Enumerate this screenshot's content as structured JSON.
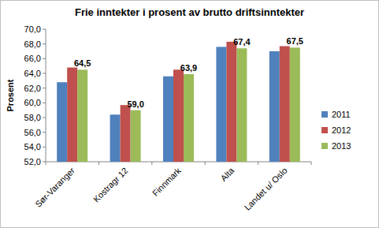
{
  "chart_data": {
    "type": "bar",
    "title": "Frie inntekter i prosent av brutto driftsinntekter",
    "y_label": "Prosent",
    "categories": [
      "Sør-Varanger",
      "Kostragr 12",
      "Finnmark",
      "Alta",
      "Landet u/ Oslo"
    ],
    "series": [
      {
        "name": "2011",
        "color": "#4f81bd",
        "values": [
          62.8,
          58.4,
          63.6,
          67.6,
          67.0
        ]
      },
      {
        "name": "2012",
        "color": "#c0504d",
        "values": [
          64.8,
          59.7,
          64.5,
          68.3,
          67.7
        ]
      },
      {
        "name": "2013",
        "color": "#9bbb59",
        "values": [
          64.5,
          59.0,
          63.9,
          67.4,
          67.5
        ],
        "data_labels": true,
        "value_labels": [
          "64,5",
          "59,0",
          "63,9",
          "67,4",
          "67,5"
        ]
      }
    ],
    "ylim": [
      52,
      70
    ],
    "yticks": [
      {
        "value": 52,
        "label": "52,0"
      },
      {
        "value": 54,
        "label": "54,0"
      },
      {
        "value": 56,
        "label": "56,0"
      },
      {
        "value": 58,
        "label": "58,0"
      },
      {
        "value": 60,
        "label": "60,0"
      },
      {
        "value": 62,
        "label": "62,0"
      },
      {
        "value": 64,
        "label": "64,0"
      },
      {
        "value": 66,
        "label": "66,0"
      },
      {
        "value": 68,
        "label": "68,0"
      },
      {
        "value": 70,
        "label": "70,0"
      }
    ],
    "grid": false,
    "legend": "right"
  }
}
